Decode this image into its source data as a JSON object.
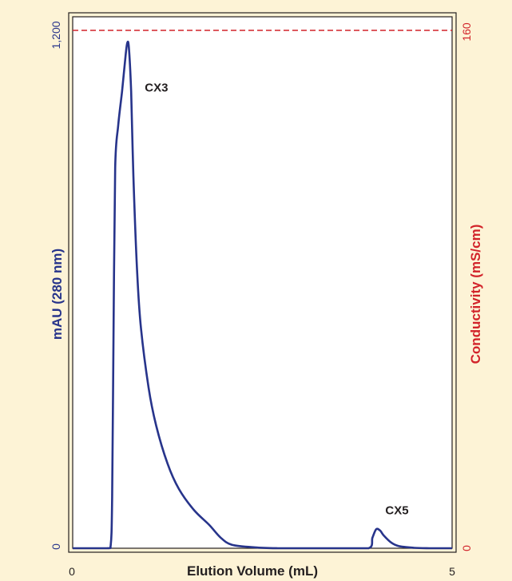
{
  "chart_data": {
    "type": "line",
    "title": "",
    "xlabel": "Elution Volume (mL)",
    "ylabel_left": "mAU (280 nm)",
    "ylabel_right": "Conductivity (mS/cm)",
    "xlim": [
      0,
      5
    ],
    "ylim_left": [
      0,
      1200
    ],
    "ylim_right": [
      0,
      160
    ],
    "x_ticks": [
      "0",
      "5"
    ],
    "y_left_ticks": [
      "0",
      "1,200"
    ],
    "y_right_ticks": [
      "0",
      "160"
    ],
    "grid": false,
    "colors": {
      "absorbance": "#27348b",
      "conductivity": "#d2232a",
      "text": "#231f20"
    },
    "series": [
      {
        "axis": "left",
        "style": "solid",
        "x": [
          0,
          0.45,
          0.5,
          0.52,
          0.54,
          0.56,
          0.6,
          0.65,
          0.7,
          0.72,
          0.74,
          0.77,
          0.8,
          0.85,
          0.9,
          1.0,
          1.1,
          1.25,
          1.4,
          1.6,
          1.8,
          1.95,
          2.1,
          2.4,
          2.7,
          3.0,
          3.3,
          3.5,
          3.9,
          3.95,
          4.0,
          4.05,
          4.1,
          4.2,
          4.3,
          4.5,
          4.7,
          5.0
        ],
        "values": [
          0,
          0,
          5,
          120,
          550,
          900,
          1000,
          1080,
          1170,
          1195,
          1185,
          1080,
          880,
          650,
          520,
          380,
          290,
          200,
          140,
          90,
          55,
          25,
          8,
          2,
          0,
          0,
          0,
          0,
          0,
          25,
          45,
          42,
          30,
          13,
          5,
          1,
          0,
          0
        ]
      },
      {
        "axis": "right",
        "style": "dashed",
        "x": [
          0,
          5
        ],
        "values": [
          160,
          160
        ]
      }
    ],
    "annotations": [
      {
        "text": "CX3",
        "x": 0.95,
        "y": 1080
      },
      {
        "text": "CX5",
        "x": 4.12,
        "y": 80
      }
    ]
  }
}
